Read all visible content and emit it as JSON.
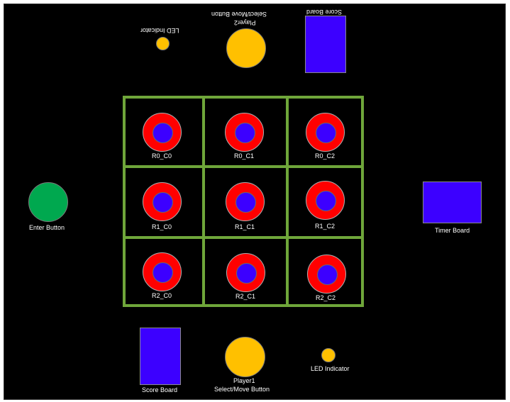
{
  "colors": {
    "background": "#000000",
    "grid": "#6fa63a",
    "ring": "#ff0000",
    "ring_center": "#3c00ff",
    "enter_button": "#00a84f",
    "player_button": "#ffc000",
    "board": "#3c00ff",
    "text": "#ffffff"
  },
  "top": {
    "led_indicator_label": "LED Indicator",
    "player2_line1": "Player2",
    "player2_line2": "Select/Move Button",
    "score_board_label": "Score Board"
  },
  "left": {
    "enter_button_label": "Enter Button"
  },
  "right": {
    "timer_board_label": "Timer Board"
  },
  "bottom": {
    "score_board_label": "Score Board",
    "player1_line1": "Player1",
    "player1_line2": "Select/Move Button",
    "led_indicator_label": "LED Indicator"
  },
  "cells": [
    {
      "label": "R0_C0"
    },
    {
      "label": "R0_C1"
    },
    {
      "label": "R0_C2"
    },
    {
      "label": "R1_C0"
    },
    {
      "label": "R1_C1"
    },
    {
      "label": "R1_C2"
    },
    {
      "label": "R2_C0"
    },
    {
      "label": "R2_C1"
    },
    {
      "label": "R2_C2"
    }
  ]
}
